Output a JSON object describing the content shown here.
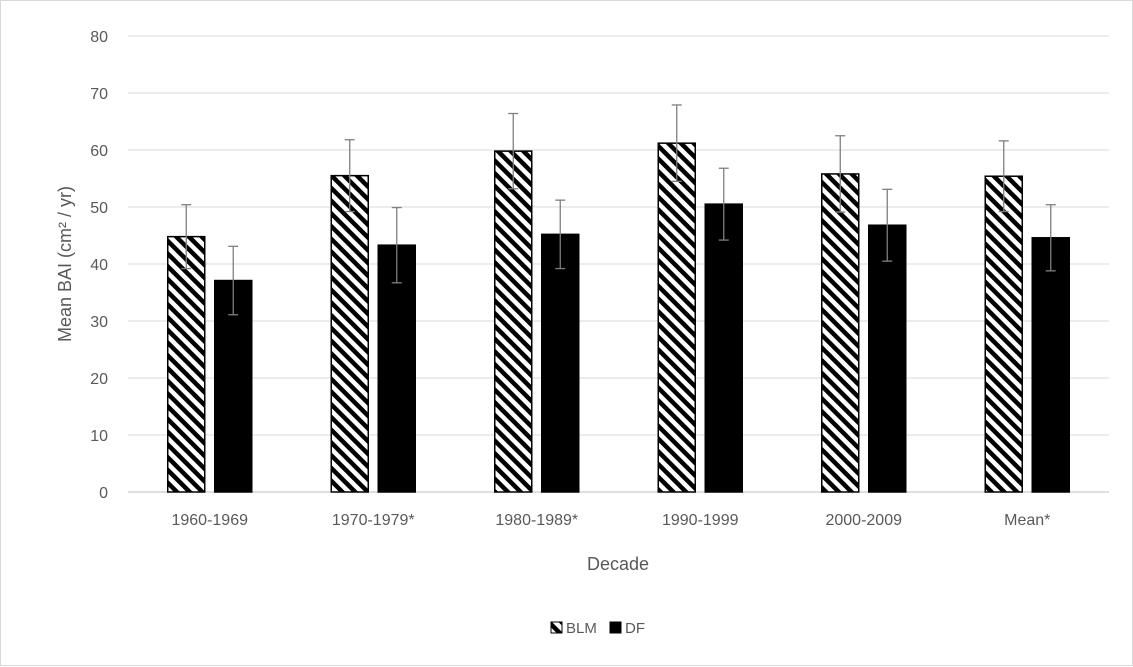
{
  "chart_data": {
    "type": "bar",
    "title": "",
    "xlabel": "Decade",
    "ylabel": "Mean BAI (cm² / yr)",
    "ylim": [
      0,
      80
    ],
    "yticks": [
      0,
      10,
      20,
      30,
      40,
      50,
      60,
      70,
      80
    ],
    "grid": true,
    "legend_position": "bottom-center",
    "categories": [
      "1960-1969",
      "1970-1979*",
      "1980-1989*",
      "1990-1999",
      "2000-2009",
      "Mean*"
    ],
    "series": [
      {
        "name": "BLM",
        "pattern": "diagonal-hatch",
        "color": "#000000",
        "values": [
          44.8,
          55.5,
          59.8,
          61.2,
          55.8,
          55.4
        ],
        "error": [
          5.6,
          6.3,
          6.6,
          6.7,
          6.7,
          6.2
        ]
      },
      {
        "name": "DF",
        "pattern": "solid",
        "color": "#000000",
        "values": [
          37.1,
          43.3,
          45.2,
          50.5,
          46.8,
          44.6
        ],
        "error": [
          6.0,
          6.6,
          6.0,
          6.3,
          6.3,
          5.8
        ]
      }
    ]
  }
}
